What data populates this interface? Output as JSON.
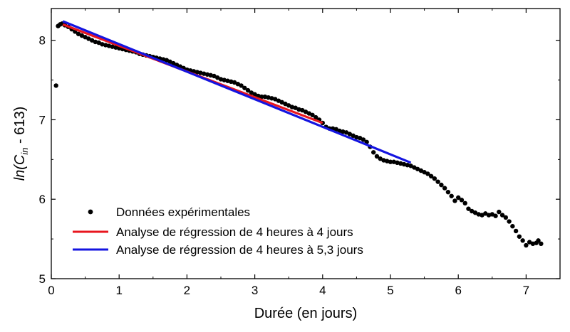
{
  "chart_data": {
    "type": "scatter",
    "xlabel": "Durée (en jours)",
    "ylabel_parts": [
      "ln(C",
      "in",
      " - 613)"
    ],
    "xlim": [
      0,
      7.5
    ],
    "ylim": [
      5,
      8.4
    ],
    "xticks": [
      0,
      1,
      2,
      3,
      4,
      5,
      6,
      7
    ],
    "yticks": [
      5,
      6,
      7,
      8
    ],
    "grid": false,
    "legend_position": "bottom-left",
    "series": [
      {
        "name": "Données expérimentales",
        "kind": "points",
        "color": "#000000",
        "points": [
          [
            0.07,
            7.43
          ],
          [
            0.1,
            8.18
          ],
          [
            0.13,
            8.2
          ],
          [
            0.16,
            8.21
          ],
          [
            0.2,
            8.19
          ],
          [
            0.25,
            8.17
          ],
          [
            0.3,
            8.14
          ],
          [
            0.35,
            8.11
          ],
          [
            0.4,
            8.08
          ],
          [
            0.45,
            8.06
          ],
          [
            0.5,
            8.04
          ],
          [
            0.55,
            8.02
          ],
          [
            0.6,
            8.0
          ],
          [
            0.65,
            7.98
          ],
          [
            0.7,
            7.97
          ],
          [
            0.75,
            7.95
          ],
          [
            0.8,
            7.94
          ],
          [
            0.85,
            7.93
          ],
          [
            0.9,
            7.92
          ],
          [
            0.95,
            7.91
          ],
          [
            1.0,
            7.9
          ],
          [
            1.05,
            7.89
          ],
          [
            1.1,
            7.88
          ],
          [
            1.15,
            7.87
          ],
          [
            1.2,
            7.86
          ],
          [
            1.25,
            7.85
          ],
          [
            1.3,
            7.83
          ],
          [
            1.35,
            7.82
          ],
          [
            1.4,
            7.81
          ],
          [
            1.45,
            7.8
          ],
          [
            1.5,
            7.79
          ],
          [
            1.55,
            7.78
          ],
          [
            1.6,
            7.77
          ],
          [
            1.65,
            7.76
          ],
          [
            1.7,
            7.75
          ],
          [
            1.75,
            7.73
          ],
          [
            1.8,
            7.71
          ],
          [
            1.85,
            7.69
          ],
          [
            1.9,
            7.67
          ],
          [
            1.95,
            7.65
          ],
          [
            2.0,
            7.63
          ],
          [
            2.05,
            7.62
          ],
          [
            2.1,
            7.61
          ],
          [
            2.15,
            7.6
          ],
          [
            2.2,
            7.59
          ],
          [
            2.25,
            7.58
          ],
          [
            2.3,
            7.57
          ],
          [
            2.35,
            7.56
          ],
          [
            2.4,
            7.55
          ],
          [
            2.45,
            7.53
          ],
          [
            2.5,
            7.51
          ],
          [
            2.55,
            7.5
          ],
          [
            2.6,
            7.49
          ],
          [
            2.65,
            7.48
          ],
          [
            2.7,
            7.47
          ],
          [
            2.75,
            7.45
          ],
          [
            2.8,
            7.43
          ],
          [
            2.85,
            7.4
          ],
          [
            2.9,
            7.37
          ],
          [
            2.95,
            7.34
          ],
          [
            3.0,
            7.32
          ],
          [
            3.05,
            7.3
          ],
          [
            3.1,
            7.29
          ],
          [
            3.15,
            7.29
          ],
          [
            3.2,
            7.28
          ],
          [
            3.25,
            7.27
          ],
          [
            3.3,
            7.26
          ],
          [
            3.35,
            7.24
          ],
          [
            3.4,
            7.22
          ],
          [
            3.45,
            7.2
          ],
          [
            3.5,
            7.18
          ],
          [
            3.55,
            7.16
          ],
          [
            3.6,
            7.15
          ],
          [
            3.65,
            7.13
          ],
          [
            3.7,
            7.12
          ],
          [
            3.75,
            7.1
          ],
          [
            3.8,
            7.08
          ],
          [
            3.85,
            7.06
          ],
          [
            3.9,
            7.03
          ],
          [
            3.95,
            7.0
          ],
          [
            4.0,
            6.96
          ],
          [
            4.05,
            6.91
          ],
          [
            4.1,
            6.89
          ],
          [
            4.15,
            6.89
          ],
          [
            4.2,
            6.88
          ],
          [
            4.25,
            6.86
          ],
          [
            4.3,
            6.85
          ],
          [
            4.35,
            6.84
          ],
          [
            4.4,
            6.82
          ],
          [
            4.45,
            6.8
          ],
          [
            4.5,
            6.78
          ],
          [
            4.55,
            6.77
          ],
          [
            4.6,
            6.75
          ],
          [
            4.65,
            6.72
          ],
          [
            4.7,
            6.66
          ],
          [
            4.75,
            6.59
          ],
          [
            4.8,
            6.54
          ],
          [
            4.85,
            6.51
          ],
          [
            4.9,
            6.49
          ],
          [
            4.95,
            6.48
          ],
          [
            5.0,
            6.47
          ],
          [
            5.05,
            6.47
          ],
          [
            5.1,
            6.46
          ],
          [
            5.15,
            6.45
          ],
          [
            5.2,
            6.44
          ],
          [
            5.25,
            6.43
          ],
          [
            5.3,
            6.42
          ],
          [
            5.35,
            6.4
          ],
          [
            5.4,
            6.38
          ],
          [
            5.45,
            6.36
          ],
          [
            5.5,
            6.34
          ],
          [
            5.55,
            6.32
          ],
          [
            5.6,
            6.29
          ],
          [
            5.65,
            6.26
          ],
          [
            5.7,
            6.22
          ],
          [
            5.75,
            6.18
          ],
          [
            5.8,
            6.14
          ],
          [
            5.85,
            6.09
          ],
          [
            5.9,
            6.04
          ],
          [
            5.95,
            5.98
          ],
          [
            6.0,
            6.02
          ],
          [
            6.05,
            5.99
          ],
          [
            6.1,
            5.95
          ],
          [
            6.15,
            5.88
          ],
          [
            6.2,
            5.85
          ],
          [
            6.25,
            5.83
          ],
          [
            6.3,
            5.81
          ],
          [
            6.35,
            5.8
          ],
          [
            6.4,
            5.82
          ],
          [
            6.45,
            5.8
          ],
          [
            6.5,
            5.81
          ],
          [
            6.55,
            5.79
          ],
          [
            6.6,
            5.84
          ],
          [
            6.65,
            5.8
          ],
          [
            6.7,
            5.77
          ],
          [
            6.75,
            5.72
          ],
          [
            6.8,
            5.66
          ],
          [
            6.85,
            5.6
          ],
          [
            6.9,
            5.53
          ],
          [
            6.95,
            5.48
          ],
          [
            7.0,
            5.42
          ],
          [
            7.05,
            5.46
          ],
          [
            7.1,
            5.44
          ],
          [
            7.15,
            5.45
          ],
          [
            7.18,
            5.48
          ],
          [
            7.22,
            5.44
          ]
        ]
      },
      {
        "name": "Analyse de régression de 4 heures à 4 jours",
        "kind": "line",
        "color": "#e8161e",
        "x": [
          0.17,
          4.0
        ],
        "y": [
          8.2,
          6.96
        ]
      },
      {
        "name": "Analyse de régression de 4 heures à 5,3 jours",
        "kind": "line",
        "color": "#1414e0",
        "x": [
          0.17,
          5.3
        ],
        "y": [
          8.24,
          6.46
        ]
      }
    ]
  }
}
